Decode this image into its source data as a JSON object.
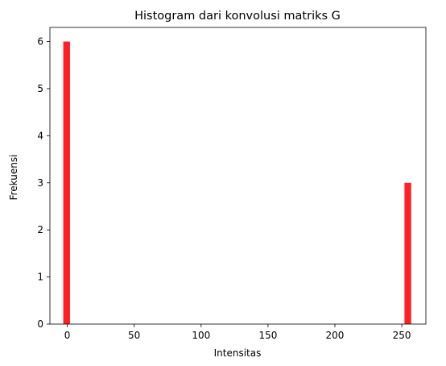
{
  "chart_data": {
    "type": "bar",
    "title": "Histogram dari konvolusi matriks G",
    "xlabel": "Intensitas",
    "ylabel": "Frekuensi",
    "xlim": [
      -13,
      268
    ],
    "ylim": [
      0,
      6.3
    ],
    "x_ticks": [
      0,
      50,
      100,
      150,
      200,
      250
    ],
    "y_ticks": [
      0,
      1,
      2,
      3,
      4,
      5,
      6
    ],
    "bar_color": "#ff1f24",
    "bars": [
      {
        "x0": -3,
        "x1": 2,
        "value": 6
      },
      {
        "x0": 252,
        "x1": 257,
        "value": 3
      }
    ],
    "grid": false,
    "legend": "none"
  }
}
